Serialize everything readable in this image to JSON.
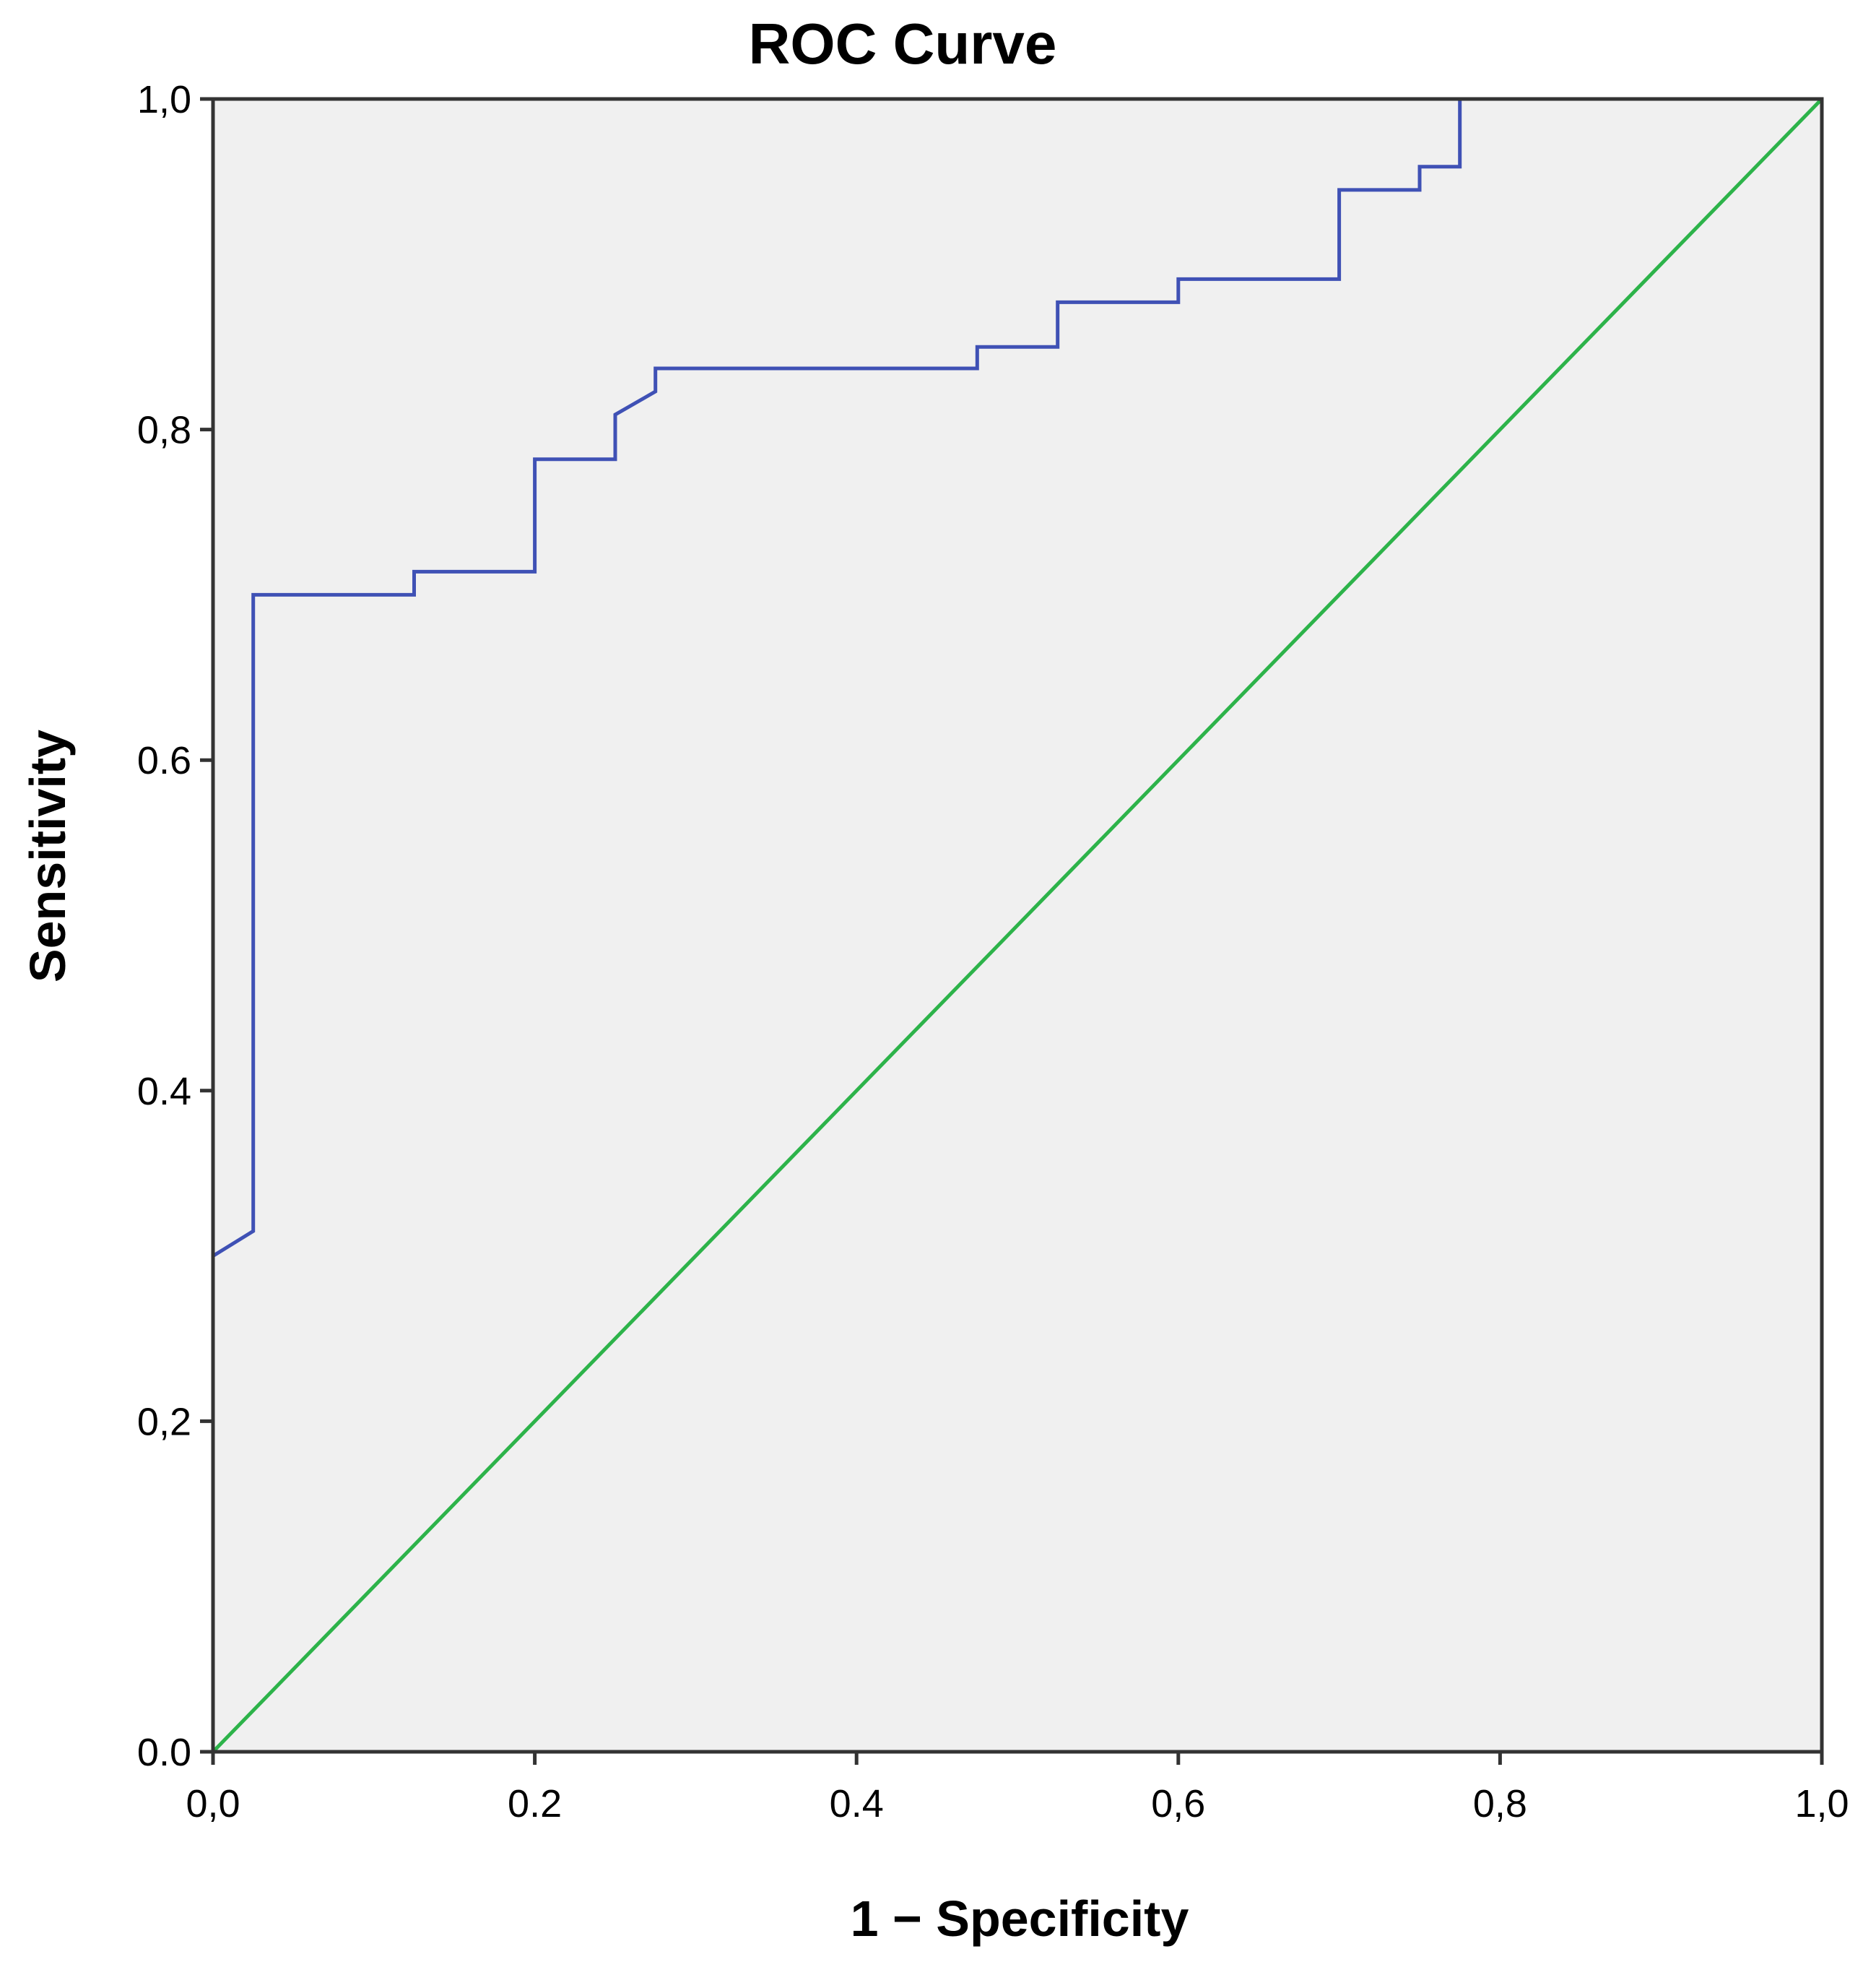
{
  "chart_data": {
    "type": "line",
    "title": "ROC Curve",
    "xlabel": "1 − Specificity",
    "ylabel": "Sensitivity",
    "xlim": [
      0,
      1
    ],
    "ylim": [
      0,
      1
    ],
    "x_ticks": [
      {
        "value": 0.0,
        "label": "0,0"
      },
      {
        "value": 0.2,
        "label": "0.2"
      },
      {
        "value": 0.4,
        "label": "0.4"
      },
      {
        "value": 0.6,
        "label": "0,6"
      },
      {
        "value": 0.8,
        "label": "0,8"
      },
      {
        "value": 1.0,
        "label": "1,0"
      }
    ],
    "y_ticks": [
      {
        "value": 0.0,
        "label": "0.0"
      },
      {
        "value": 0.2,
        "label": "0,2"
      },
      {
        "value": 0.4,
        "label": "0.4"
      },
      {
        "value": 0.6,
        "label": "0.6"
      },
      {
        "value": 0.8,
        "label": "0,8"
      },
      {
        "value": 1.0,
        "label": "1,0"
      }
    ],
    "grid": false,
    "legend": "none",
    "plot_background": "#f0f0f0",
    "series": [
      {
        "color": "#3f51b5",
        "x": [
          0,
          0,
          0.025,
          0.025,
          0.125,
          0.125,
          0.2,
          0.2,
          0.25,
          0.25,
          0.275,
          0.275,
          0.475,
          0.475,
          0.525,
          0.525,
          0.6,
          0.6,
          0.7,
          0.7,
          0.75,
          0.75,
          0.775,
          0.775,
          1.0
        ],
        "y": [
          0,
          0.3,
          0.315,
          0.7,
          0.7,
          0.714,
          0.714,
          0.782,
          0.782,
          0.809,
          0.823,
          0.837,
          0.837,
          0.85,
          0.85,
          0.877,
          0.877,
          0.891,
          0.891,
          0.945,
          0.945,
          0.959,
          0.959,
          1.0,
          1.0
        ]
      },
      {
        "color": "#2db34a",
        "x": [
          0,
          1
        ],
        "y": [
          0,
          1
        ]
      }
    ]
  }
}
